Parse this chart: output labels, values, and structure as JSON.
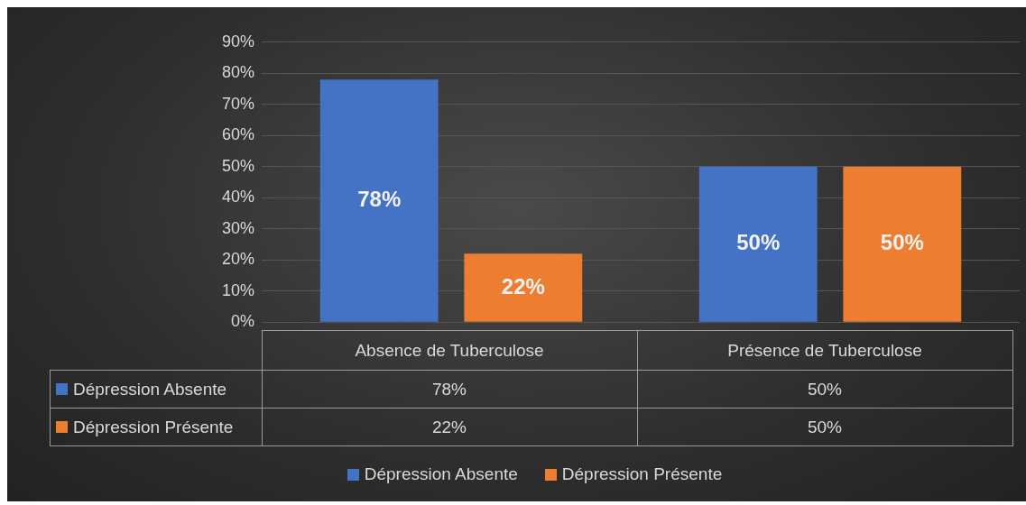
{
  "chart_data": {
    "type": "bar",
    "categories": [
      "Absence de Tuberculose",
      "Présence de Tuberculose"
    ],
    "series": [
      {
        "name": "Dépression Absente",
        "color": "#4472c4",
        "values": [
          78,
          50
        ],
        "value_labels": [
          "78%",
          "50%"
        ]
      },
      {
        "name": "Dépression Présente",
        "color": "#ed7d31",
        "values": [
          22,
          50
        ],
        "value_labels": [
          "22%",
          "50%"
        ]
      }
    ],
    "ylim": [
      0,
      90
    ],
    "yticks": [
      {
        "value": 0,
        "label": "0%"
      },
      {
        "value": 10,
        "label": "10%"
      },
      {
        "value": 20,
        "label": "20%"
      },
      {
        "value": 30,
        "label": "30%"
      },
      {
        "value": 40,
        "label": "40%"
      },
      {
        "value": 50,
        "label": "50%"
      },
      {
        "value": 60,
        "label": "60%"
      },
      {
        "value": 70,
        "label": "70%"
      },
      {
        "value": 80,
        "label": "80%"
      },
      {
        "value": 90,
        "label": "90%"
      }
    ],
    "grid": "y",
    "legend": "bottom"
  }
}
